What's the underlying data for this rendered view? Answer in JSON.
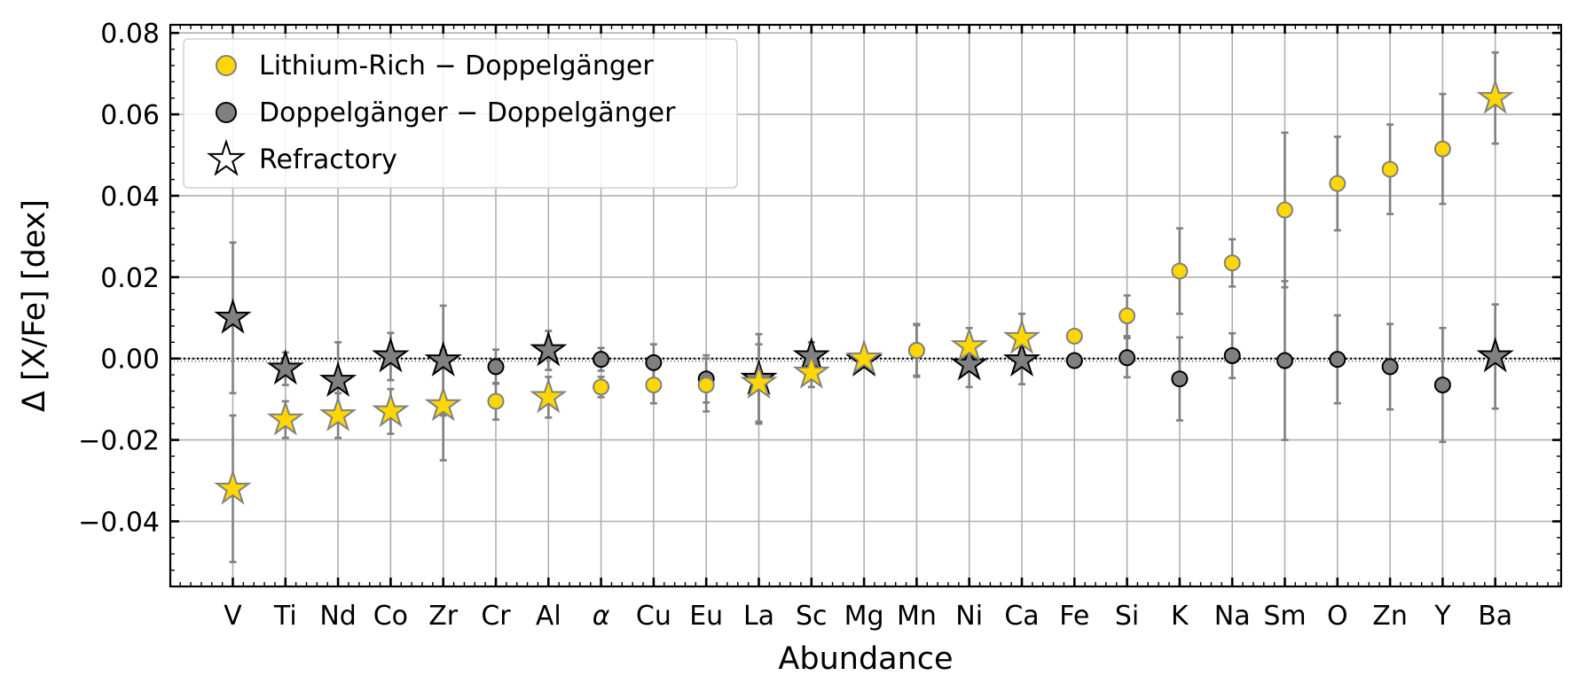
{
  "chart_data": {
    "type": "scatter",
    "xlabel": "Abundance",
    "ylabel": "Δ [X/Fe] [dex]",
    "ylim": [
      -0.056,
      0.082
    ],
    "yticks": [
      -0.04,
      -0.02,
      0.0,
      0.02,
      0.04,
      0.06,
      0.08
    ],
    "ytick_labels": [
      "−0.04",
      "−0.02",
      "0.00",
      "0.02",
      "0.04",
      "0.06",
      "0.08"
    ],
    "grid": true,
    "legend_position": "top-left",
    "reference_line_y": 0.0,
    "categories": [
      "V",
      "Ti",
      "Nd",
      "Co",
      "Zr",
      "Cr",
      "Al",
      "α",
      "Cu",
      "Eu",
      "La",
      "Sc",
      "Mg",
      "Mn",
      "Ni",
      "Ca",
      "Fe",
      "Si",
      "K",
      "Na",
      "Sm",
      "O",
      "Zn",
      "Y",
      "Ba"
    ],
    "refractory": [
      true,
      true,
      true,
      true,
      true,
      false,
      true,
      false,
      false,
      false,
      true,
      true,
      true,
      false,
      true,
      true,
      false,
      false,
      false,
      false,
      false,
      false,
      false,
      false,
      true
    ],
    "series": [
      {
        "name": "Lithium-Rich − Doppelgänger",
        "color": "#FFD700",
        "edge_color": "#808080",
        "values": [
          -0.032,
          -0.015,
          -0.014,
          -0.013,
          -0.0115,
          -0.0105,
          -0.0095,
          -0.007,
          -0.0065,
          -0.0065,
          -0.006,
          -0.0035,
          0.0,
          0.002,
          0.003,
          0.005,
          0.0055,
          0.0105,
          0.0215,
          0.0235,
          0.0365,
          0.043,
          0.0465,
          0.0515,
          0.064
        ],
        "errors": [
          0.018,
          0.0045,
          0.0055,
          0.0055,
          0.0135,
          0.0045,
          0.005,
          0.0025,
          0.0045,
          0.0065,
          0.0095,
          0.0035,
          0.0015,
          0.0065,
          0.0045,
          0.006,
          0.0015,
          0.005,
          0.0105,
          0.0058,
          0.019,
          0.0115,
          0.011,
          0.0135,
          0.0112
        ]
      },
      {
        "name": "Doppelgänger − Doppelgänger",
        "color": "#808080",
        "edge_color": "#000000",
        "values": [
          0.01,
          -0.0025,
          -0.0055,
          0.0005,
          -0.0005,
          -0.002,
          0.002,
          -0.0002,
          -0.001,
          -0.005,
          -0.005,
          0.0005,
          -0.0005,
          0.002,
          -0.0015,
          -0.0005,
          -0.0005,
          0.0002,
          -0.005,
          0.0007,
          -0.0005,
          -0.0002,
          -0.002,
          -0.0065,
          0.0005
        ],
        "errors": [
          0.0185,
          0.004,
          0.0095,
          0.0058,
          0.0135,
          0.0042,
          0.0048,
          0.0028,
          0.0045,
          0.0058,
          0.011,
          0.0035,
          0.0015,
          0.0062,
          0.0055,
          0.0058,
          0.0015,
          0.0048,
          0.0102,
          0.0055,
          0.0195,
          0.0108,
          0.0105,
          0.014,
          0.0128
        ]
      }
    ],
    "legend_extra": "Refractory"
  }
}
